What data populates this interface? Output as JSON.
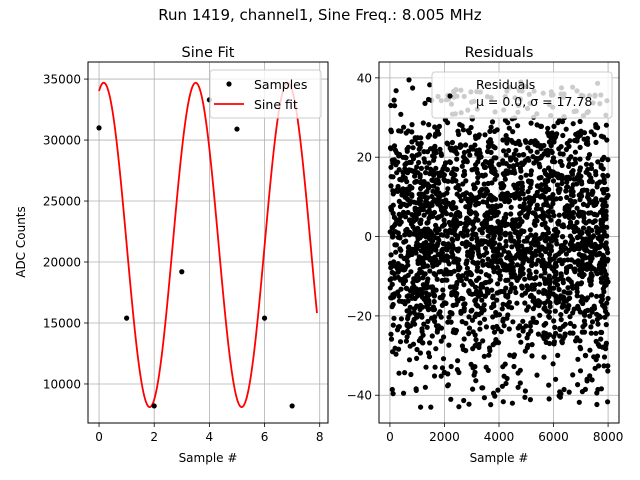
{
  "figure": {
    "suptitle": "Run 1419, channel1, Sine Freq.: 8.005 MHz"
  },
  "chart_data": [
    {
      "type": "scatter",
      "title": "Sine Fit",
      "xlabel": "Sample #",
      "ylabel": "ADC Counts",
      "xlim": [
        -0.4,
        8.3
      ],
      "ylim": [
        6800,
        36400
      ],
      "xticks": [
        0,
        2,
        4,
        6,
        8
      ],
      "yticks": [
        10000,
        15000,
        20000,
        25000,
        30000,
        35000
      ],
      "grid": true,
      "legend_position": "top-right",
      "series": [
        {
          "name": "Samples",
          "kind": "scatter",
          "color": "#000000",
          "x": [
            0,
            1,
            2,
            3,
            4,
            5,
            6,
            7
          ],
          "y": [
            31000,
            15400,
            8200,
            19200,
            33300,
            30900,
            15400,
            8200
          ]
        },
        {
          "name": "Sine fit",
          "kind": "line",
          "color": "#ff0000",
          "model": {
            "offset": 21400,
            "amplitude": 13300,
            "cycles_per_sample": 0.3,
            "phase": 1.25,
            "x_start": 0,
            "x_end": 7.9
          }
        }
      ]
    },
    {
      "type": "scatter",
      "title": "Residuals",
      "xlabel": "Sample #",
      "ylabel": "",
      "xlim": [
        -400,
        8400
      ],
      "ylim": [
        -47,
        44
      ],
      "xticks": [
        0,
        2000,
        4000,
        6000,
        8000
      ],
      "yticks": [
        -40,
        -20,
        0,
        20,
        40
      ],
      "grid": true,
      "legend_position": "top-right",
      "series": [
        {
          "name": "Residuals",
          "kind": "scatter",
          "color": "#000000",
          "stats_label": "μ = 0.0, σ = 17.78",
          "distribution": {
            "n_points": 8000,
            "mean": 0.0,
            "std": 17.78,
            "min": -43,
            "max": 39,
            "x_start": 0,
            "x_end": 8000
          },
          "extreme_points": [
            {
              "x": 1500,
              "y": -43
            },
            {
              "x": 6250,
              "y": -40.5
            },
            {
              "x": 500,
              "y": -39.5
            },
            {
              "x": 3800,
              "y": -39.5
            },
            {
              "x": 700,
              "y": 39.5
            },
            {
              "x": 1300,
              "y": -38
            },
            {
              "x": 4700,
              "y": -38
            }
          ]
        }
      ]
    }
  ]
}
